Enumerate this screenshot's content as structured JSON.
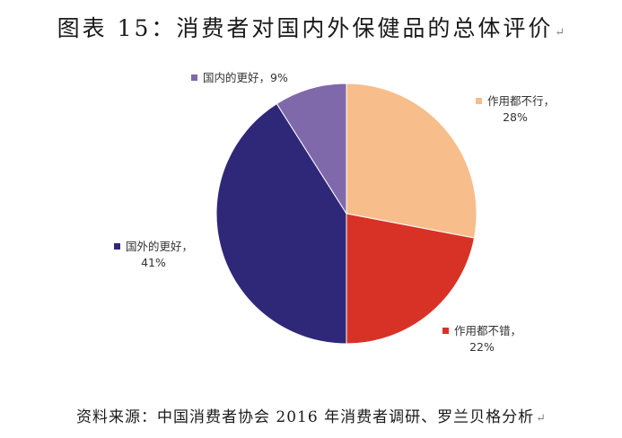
{
  "title": "图表 15：消费者对国内外保健品的总体评价",
  "source": "资料来源：中国消费者协会 2016 年消费者调研、罗兰贝格分析",
  "colors": {
    "s1": "#f7bd8b",
    "s2": "#d83227",
    "s3": "#2f2879",
    "s4": "#8069aa"
  },
  "chart_data": {
    "type": "pie",
    "title": "",
    "categories": [
      "作用都不行",
      "作用都不错",
      "国外的更好",
      "国内的更好"
    ],
    "values": [
      28,
      22,
      41,
      9
    ],
    "unit": "%",
    "labels": [
      {
        "name": "作用都不行，",
        "pct": "28%"
      },
      {
        "name": "作用都不错，",
        "pct": "22%"
      },
      {
        "name": "国外的更好，",
        "pct": "41%"
      },
      {
        "name": "国内的更好，",
        "pct": "9%"
      }
    ]
  }
}
